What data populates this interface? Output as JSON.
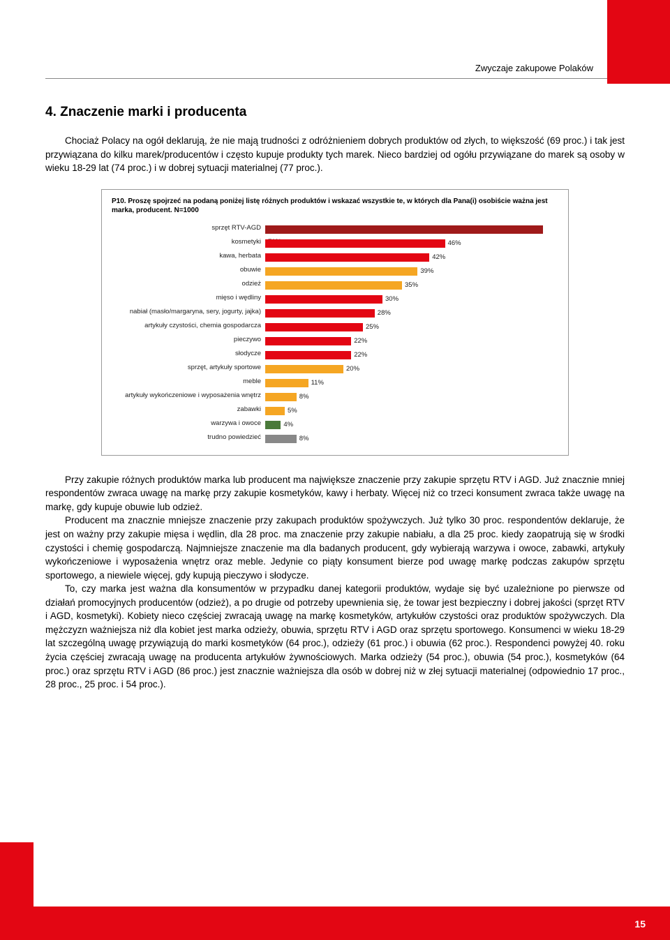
{
  "header": {
    "title": "Zwyczaje zakupowe Polaków"
  },
  "section": {
    "heading": "4. Znaczenie marki i producenta",
    "intro": "Chociaż Polacy na ogół deklarują, że nie mają trudności z odróżnieniem dobrych produktów od złych, to większość (69 proc.) i tak jest przywiązana do kilku marek/producentów i często kupuje produkty tych marek. Nieco bardziej od ogółu przywiązane do marek są osoby w wieku 18-29 lat (74 proc.) i w dobrej sytuacji materialnej (77 proc.)."
  },
  "chart": {
    "title": "P10. Proszę spojrzeć na podaną poniżej listę różnych produktów i wskazać wszystkie te, w których dla Pana(i) osobiście ważna jest marka, producent. N=1000",
    "max": 75,
    "items": [
      {
        "label": "sprzęt RTV-AGD",
        "value": 71,
        "color": "#9f1a1a",
        "text": "71%"
      },
      {
        "label": "kosmetyki",
        "value": 46,
        "color": "#e30613",
        "text": "46%"
      },
      {
        "label": "kawa, herbata",
        "value": 42,
        "color": "#e30613",
        "text": "42%"
      },
      {
        "label": "obuwie",
        "value": 39,
        "color": "#f5a623",
        "text": "39%"
      },
      {
        "label": "odzież",
        "value": 35,
        "color": "#f5a623",
        "text": "35%"
      },
      {
        "label": "mięso i wędliny",
        "value": 30,
        "color": "#e30613",
        "text": "30%"
      },
      {
        "label": "nabiał (masło/margaryna, sery, jogurty, jajka)",
        "value": 28,
        "color": "#e30613",
        "text": "28%"
      },
      {
        "label": "artykuły czystości, chemia gospodarcza",
        "value": 25,
        "color": "#e30613",
        "text": "25%"
      },
      {
        "label": "pieczywo",
        "value": 22,
        "color": "#e30613",
        "text": "22%"
      },
      {
        "label": "słodycze",
        "value": 22,
        "color": "#e30613",
        "text": "22%"
      },
      {
        "label": "sprzęt, artykuły sportowe",
        "value": 20,
        "color": "#f5a623",
        "text": "20%"
      },
      {
        "label": "meble",
        "value": 11,
        "color": "#f5a623",
        "text": "11%"
      },
      {
        "label": "artykuły wykończeniowe i wyposażenia wnętrz",
        "value": 8,
        "color": "#f5a623",
        "text": "8%"
      },
      {
        "label": "zabawki",
        "value": 5,
        "color": "#f5a623",
        "text": "5%"
      },
      {
        "label": "warzywa i owoce",
        "value": 4,
        "color": "#4a7a3a",
        "text": "4%"
      },
      {
        "label": "trudno powiedzieć",
        "value": 8,
        "color": "#888888",
        "text": "8%"
      }
    ]
  },
  "paragraphs": {
    "p1": "Przy zakupie różnych produktów marka lub producent ma największe znaczenie przy zakupie sprzętu RTV i AGD. Już znacznie mniej respondentów zwraca uwagę na markę przy zakupie kosmetyków, kawy i herbaty. Więcej niż co trzeci konsument zwraca także uwagę na markę, gdy kupuje obuwie lub odzież.",
    "p2": "Producent ma znacznie mniejsze znaczenie przy zakupach produktów spożywczych. Już tylko 30 proc. respondentów deklaruje, że jest on ważny przy zakupie mięsa i wędlin, dla 28 proc. ma znaczenie przy zakupie nabiału, a dla 25 proc. kiedy zaopatrują się w środki czystości i chemię gospodarczą. Najmniejsze znaczenie ma dla badanych producent, gdy wybierają warzywa i owoce, zabawki, artykuły wykończeniowe i wyposażenia wnętrz oraz meble. Jedynie co piąty konsument bierze pod uwagę markę podczas zakupów sprzętu sportowego, a niewiele więcej, gdy kupują pieczywo i słodycze.",
    "p3": "To, czy marka jest ważna dla konsumentów w przypadku danej kategorii produktów, wydaje się być uzależnione po pierwsze od działań promocyjnych producentów (odzież), a po drugie od potrzeby upewnienia się, że towar jest bezpieczny i dobrej jakości (sprzęt RTV i AGD, kosmetyki). Kobiety nieco częściej zwracają uwagę na markę kosmetyków, artykułów czystości oraz produktów spożywczych. Dla mężczyzn ważniejsza niż dla kobiet jest marka odzieży, obuwia, sprzętu RTV i AGD oraz sprzętu sportowego. Konsumenci w wieku 18-29 lat szczególną uwagę przywiązują do marki kosmetyków (64 proc.), odzieży (61 proc.) i obuwia (62 proc.). Respondenci powyżej 40. roku życia częściej zwracają uwagę na producenta artykułów żywnościowych. Marka odzieży (54 proc.), obuwia (54 proc.), kosmetyków (64 proc.) oraz sprzętu RTV i AGD (86 proc.) jest znacznie ważniejsza dla osób w dobrej niż w złej sytuacji materialnej (odpowiednio 17 proc., 28 proc., 25 proc. i 54 proc.)."
  },
  "footer": {
    "page": "15"
  }
}
